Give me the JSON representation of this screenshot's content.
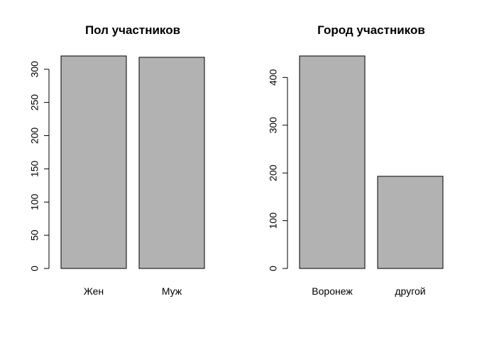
{
  "chart_data": [
    {
      "type": "bar",
      "title": "Пол участников",
      "xlabel": "",
      "ylabel": "",
      "categories": [
        "Жен",
        "Муж"
      ],
      "values": [
        320,
        318
      ],
      "ylim": [
        0,
        320
      ],
      "yticks": [
        0,
        50,
        100,
        150,
        200,
        250,
        300
      ],
      "bar_color": "#b2b2b2",
      "grid": false,
      "legend": "none"
    },
    {
      "type": "bar",
      "title": "Город участников",
      "xlabel": "",
      "ylabel": "",
      "categories": [
        "Воронеж",
        "другой"
      ],
      "values": [
        445,
        193
      ],
      "ylim": [
        0,
        445
      ],
      "yticks": [
        0,
        100,
        200,
        300,
        400
      ],
      "bar_color": "#b2b2b2",
      "grid": false,
      "legend": "none"
    }
  ]
}
